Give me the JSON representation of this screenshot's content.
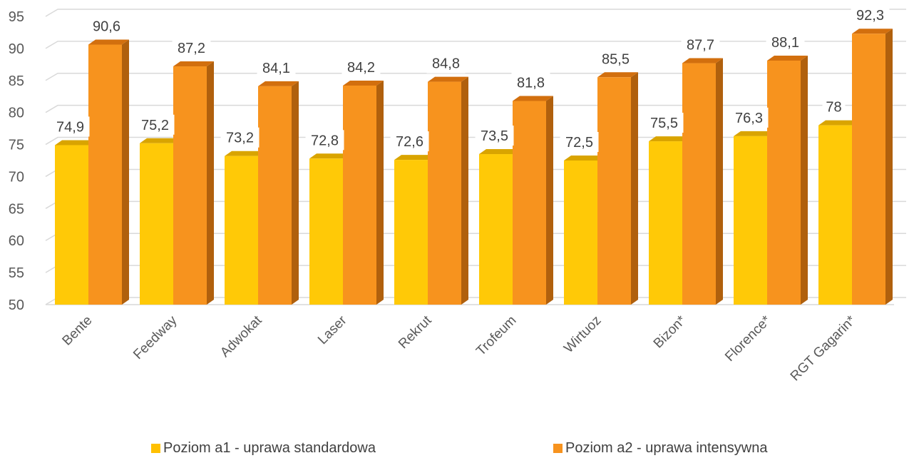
{
  "chart_data": {
    "type": "bar",
    "categories": [
      "Bente",
      "Feedway",
      "Adwokat",
      "Laser",
      "Rekrut",
      "Trofeum",
      "Wirtuoz",
      "Bizon*",
      "Florence*",
      "RGT Gagarin*"
    ],
    "series": [
      {
        "name": "Poziom a1 - uprawa standardowa",
        "values": [
          74.9,
          75.2,
          73.2,
          72.8,
          72.6,
          73.5,
          72.5,
          75.5,
          76.3,
          78
        ],
        "labels": [
          "74,9",
          "75,2",
          "73,2",
          "72,8",
          "72,6",
          "73,5",
          "72,5",
          "75,5",
          "76,3",
          "78"
        ],
        "color": "#ffc000"
      },
      {
        "name": "Poziom a2 - uprawa intensywna",
        "values": [
          90.6,
          87.2,
          84.1,
          84.2,
          84.8,
          81.8,
          85.5,
          87.7,
          88.1,
          92.3
        ],
        "labels": [
          "90,6",
          "87,2",
          "84,1",
          "84,2",
          "84,8",
          "81,8",
          "85,5",
          "87,7",
          "88,1",
          "92,3"
        ],
        "color": "#f7931e"
      }
    ],
    "yticks": [
      "50",
      "55",
      "60",
      "65",
      "70",
      "75",
      "80",
      "85",
      "90",
      "95"
    ],
    "ylim": [
      50,
      95
    ],
    "grid": true,
    "legend_position": "bottom",
    "style": "3d-column"
  }
}
